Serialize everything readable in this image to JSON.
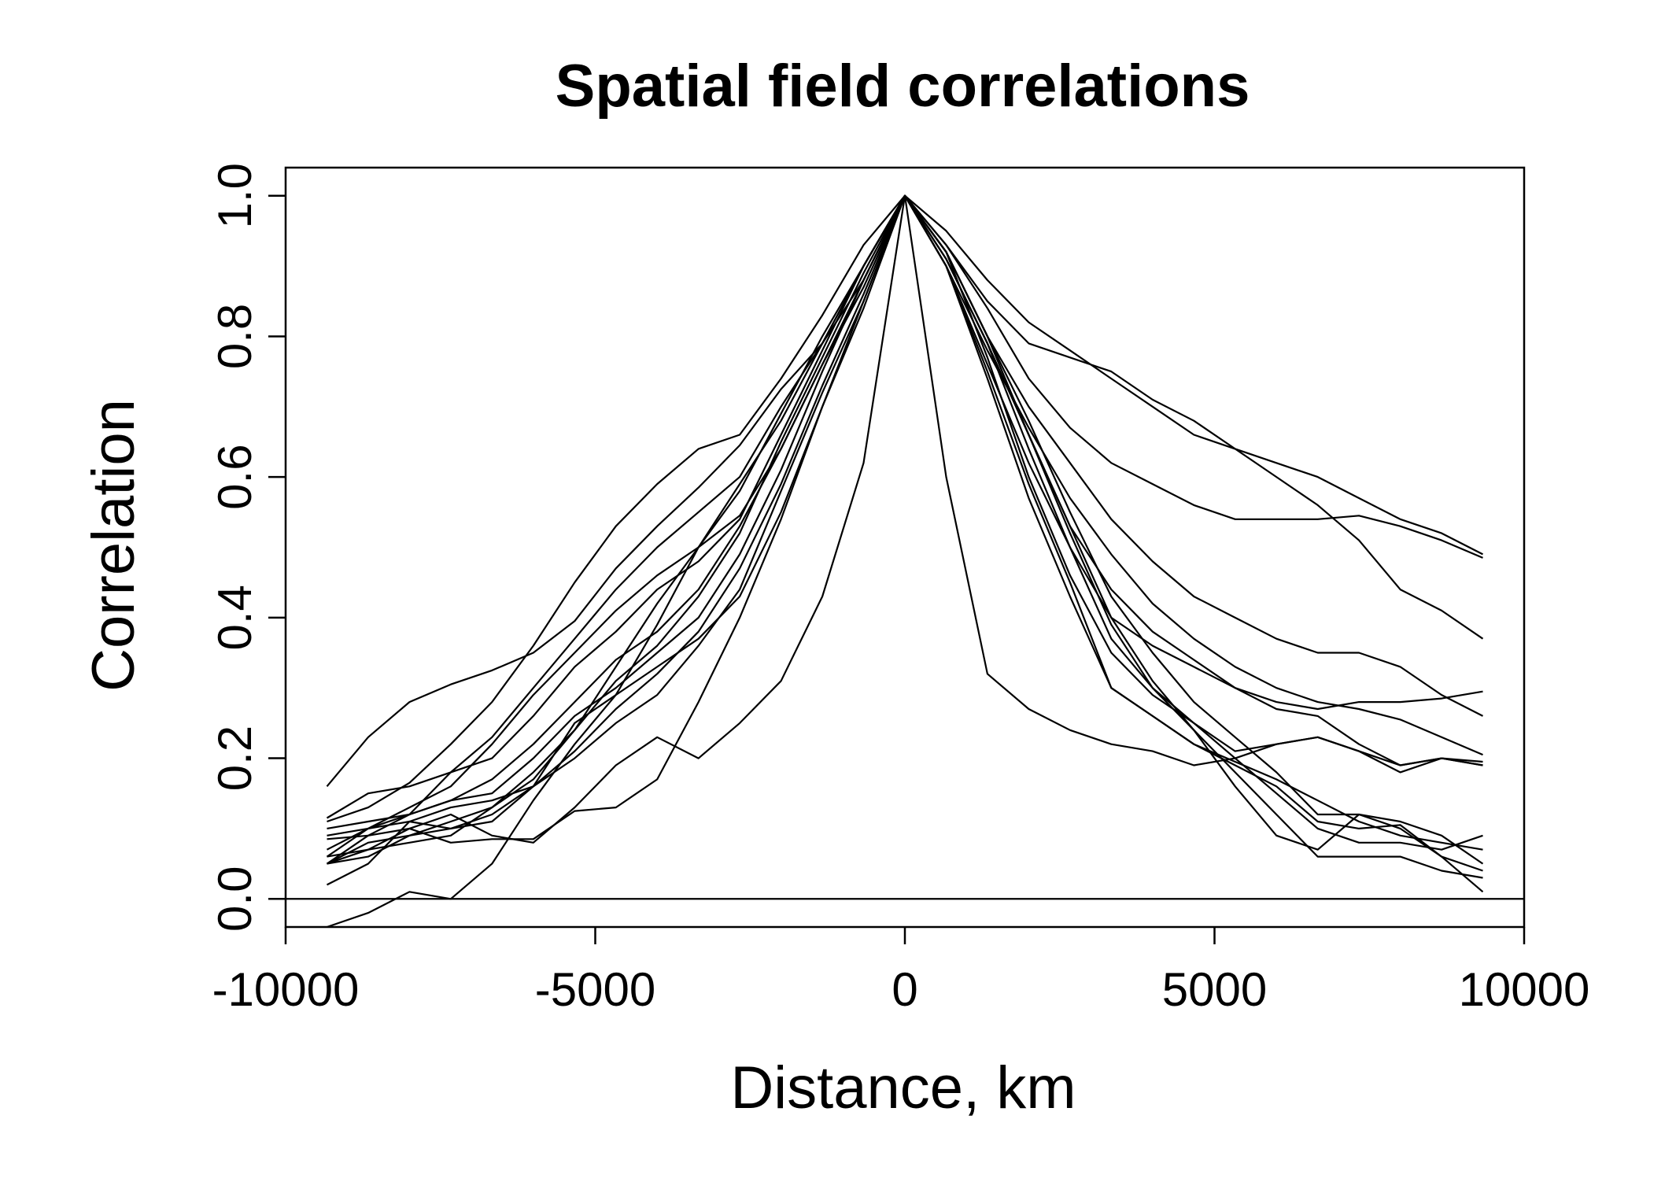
{
  "chart_data": {
    "type": "line",
    "title": "Spatial field correlations",
    "xlabel": "Distance, km",
    "ylabel": "Correlation",
    "xlim": [
      -10000,
      10000
    ],
    "ylim": [
      -0.04,
      1.04
    ],
    "xticks": [
      -10000,
      -5000,
      0,
      5000,
      10000
    ],
    "xtick_labels": [
      "-10000",
      "-5000",
      "0",
      "5000",
      "10000"
    ],
    "yticks": [
      0.0,
      0.2,
      0.4,
      0.6,
      0.8,
      1.0
    ],
    "ytick_labels": [
      "0.0",
      "0.2",
      "0.4",
      "0.6",
      "0.8",
      "1.0"
    ],
    "hline": 0,
    "grid": false,
    "line_color": "#000000",
    "x": [
      -9333,
      -8667,
      -8000,
      -7333,
      -6667,
      -6000,
      -5333,
      -4667,
      -4000,
      -3333,
      -2667,
      -2000,
      -1333,
      -667,
      0,
      667,
      1333,
      2000,
      2667,
      3333,
      4000,
      4667,
      5333,
      6000,
      6667,
      7333,
      8000,
      8667,
      9333
    ],
    "series": [
      {
        "values": [
          0.16,
          0.23,
          0.28,
          0.305,
          0.325,
          0.35,
          0.395,
          0.47,
          0.53,
          0.585,
          0.645,
          0.725,
          0.79,
          0.88,
          1.0,
          0.95,
          0.88,
          0.82,
          0.78,
          0.74,
          0.7,
          0.66,
          0.64,
          0.62,
          0.6,
          0.57,
          0.54,
          0.52,
          0.49
        ]
      },
      {
        "values": [
          0.05,
          0.09,
          0.12,
          0.18,
          0.23,
          0.3,
          0.37,
          0.44,
          0.5,
          0.55,
          0.6,
          0.7,
          0.79,
          0.9,
          1.0,
          0.93,
          0.85,
          0.79,
          0.77,
          0.75,
          0.71,
          0.68,
          0.64,
          0.6,
          0.56,
          0.51,
          0.44,
          0.41,
          0.37
        ]
      },
      {
        "values": [
          0.11,
          0.13,
          0.165,
          0.22,
          0.28,
          0.36,
          0.45,
          0.53,
          0.59,
          0.64,
          0.66,
          0.74,
          0.83,
          0.93,
          1.0,
          0.93,
          0.84,
          0.74,
          0.67,
          0.62,
          0.59,
          0.56,
          0.54,
          0.54,
          0.54,
          0.545,
          0.53,
          0.51,
          0.485
        ]
      },
      {
        "values": [
          0.07,
          0.1,
          0.13,
          0.16,
          0.22,
          0.29,
          0.35,
          0.41,
          0.46,
          0.5,
          0.545,
          0.64,
          0.76,
          0.87,
          1.0,
          0.92,
          0.8,
          0.7,
          0.62,
          0.54,
          0.48,
          0.43,
          0.4,
          0.37,
          0.35,
          0.35,
          0.33,
          0.29,
          0.26
        ]
      },
      {
        "values": [
          0.09,
          0.1,
          0.12,
          0.14,
          0.17,
          0.22,
          0.28,
          0.34,
          0.38,
          0.44,
          0.53,
          0.64,
          0.76,
          0.88,
          1.0,
          0.9,
          0.78,
          0.67,
          0.57,
          0.49,
          0.42,
          0.37,
          0.33,
          0.3,
          0.28,
          0.27,
          0.255,
          0.23,
          0.205
        ]
      },
      {
        "values": [
          0.115,
          0.15,
          0.16,
          0.18,
          0.2,
          0.26,
          0.33,
          0.38,
          0.44,
          0.48,
          0.54,
          0.66,
          0.78,
          0.9,
          1.0,
          0.9,
          0.76,
          0.62,
          0.5,
          0.4,
          0.36,
          0.33,
          0.3,
          0.28,
          0.27,
          0.28,
          0.28,
          0.285,
          0.295
        ]
      },
      {
        "values": [
          0.06,
          0.07,
          0.08,
          0.09,
          0.13,
          0.18,
          0.24,
          0.31,
          0.36,
          0.43,
          0.52,
          0.65,
          0.77,
          0.89,
          1.0,
          0.92,
          0.8,
          0.66,
          0.53,
          0.44,
          0.38,
          0.34,
          0.3,
          0.27,
          0.26,
          0.22,
          0.19,
          0.2,
          0.19
        ]
      },
      {
        "values": [
          0.1,
          0.11,
          0.12,
          0.14,
          0.15,
          0.2,
          0.26,
          0.3,
          0.35,
          0.4,
          0.49,
          0.61,
          0.75,
          0.88,
          1.0,
          0.91,
          0.79,
          0.64,
          0.5,
          0.37,
          0.3,
          0.25,
          0.21,
          0.22,
          0.23,
          0.21,
          0.19,
          0.2,
          0.195
        ]
      },
      {
        "values": [
          0.05,
          0.06,
          0.09,
          0.1,
          0.12,
          0.16,
          0.21,
          0.27,
          0.32,
          0.38,
          0.47,
          0.59,
          0.73,
          0.86,
          1.0,
          0.9,
          0.75,
          0.59,
          0.45,
          0.3,
          0.26,
          0.22,
          0.195,
          0.17,
          0.14,
          0.11,
          0.09,
          0.08,
          0.07
        ]
      },
      {
        "values": [
          0.06,
          0.1,
          0.11,
          0.13,
          0.14,
          0.16,
          0.2,
          0.25,
          0.29,
          0.36,
          0.44,
          0.58,
          0.72,
          0.85,
          1.0,
          0.9,
          0.74,
          0.57,
          0.43,
          0.3,
          0.26,
          0.22,
          0.19,
          0.16,
          0.11,
          0.1,
          0.105,
          0.06,
          0.04
        ]
      },
      {
        "values": [
          0.085,
          0.09,
          0.1,
          0.08,
          0.085,
          0.085,
          0.125,
          0.13,
          0.17,
          0.28,
          0.4,
          0.54,
          0.7,
          0.84,
          1.0,
          0.92,
          0.77,
          0.6,
          0.46,
          0.35,
          0.29,
          0.25,
          0.2,
          0.15,
          0.1,
          0.08,
          0.08,
          0.07,
          0.09
        ]
      },
      {
        "values": [
          0.02,
          0.05,
          0.11,
          0.1,
          0.11,
          0.16,
          0.25,
          0.29,
          0.33,
          0.37,
          0.43,
          0.55,
          0.7,
          0.85,
          1.0,
          0.91,
          0.79,
          0.66,
          0.52,
          0.39,
          0.3,
          0.24,
          0.18,
          0.12,
          0.06,
          0.06,
          0.06,
          0.04,
          0.03
        ]
      },
      {
        "values": [
          0.05,
          0.07,
          0.1,
          0.12,
          0.09,
          0.08,
          0.13,
          0.19,
          0.23,
          0.2,
          0.25,
          0.31,
          0.43,
          0.62,
          1.0,
          0.6,
          0.32,
          0.27,
          0.24,
          0.22,
          0.21,
          0.19,
          0.2,
          0.22,
          0.23,
          0.21,
          0.18,
          0.2,
          0.19
        ]
      },
      {
        "values": [
          -0.04,
          -0.02,
          0.01,
          0.0,
          0.05,
          0.14,
          0.22,
          0.29,
          0.39,
          0.5,
          0.59,
          0.68,
          0.79,
          0.9,
          1.0,
          0.91,
          0.79,
          0.66,
          0.53,
          0.4,
          0.31,
          0.24,
          0.16,
          0.09,
          0.07,
          0.12,
          0.1,
          0.06,
          0.01
        ]
      },
      {
        "values": [
          0.05,
          0.08,
          0.09,
          0.11,
          0.13,
          0.17,
          0.24,
          0.33,
          0.42,
          0.5,
          0.58,
          0.69,
          0.8,
          0.9,
          1.0,
          0.92,
          0.8,
          0.68,
          0.55,
          0.43,
          0.35,
          0.28,
          0.23,
          0.18,
          0.12,
          0.12,
          0.11,
          0.09,
          0.05
        ]
      }
    ]
  }
}
